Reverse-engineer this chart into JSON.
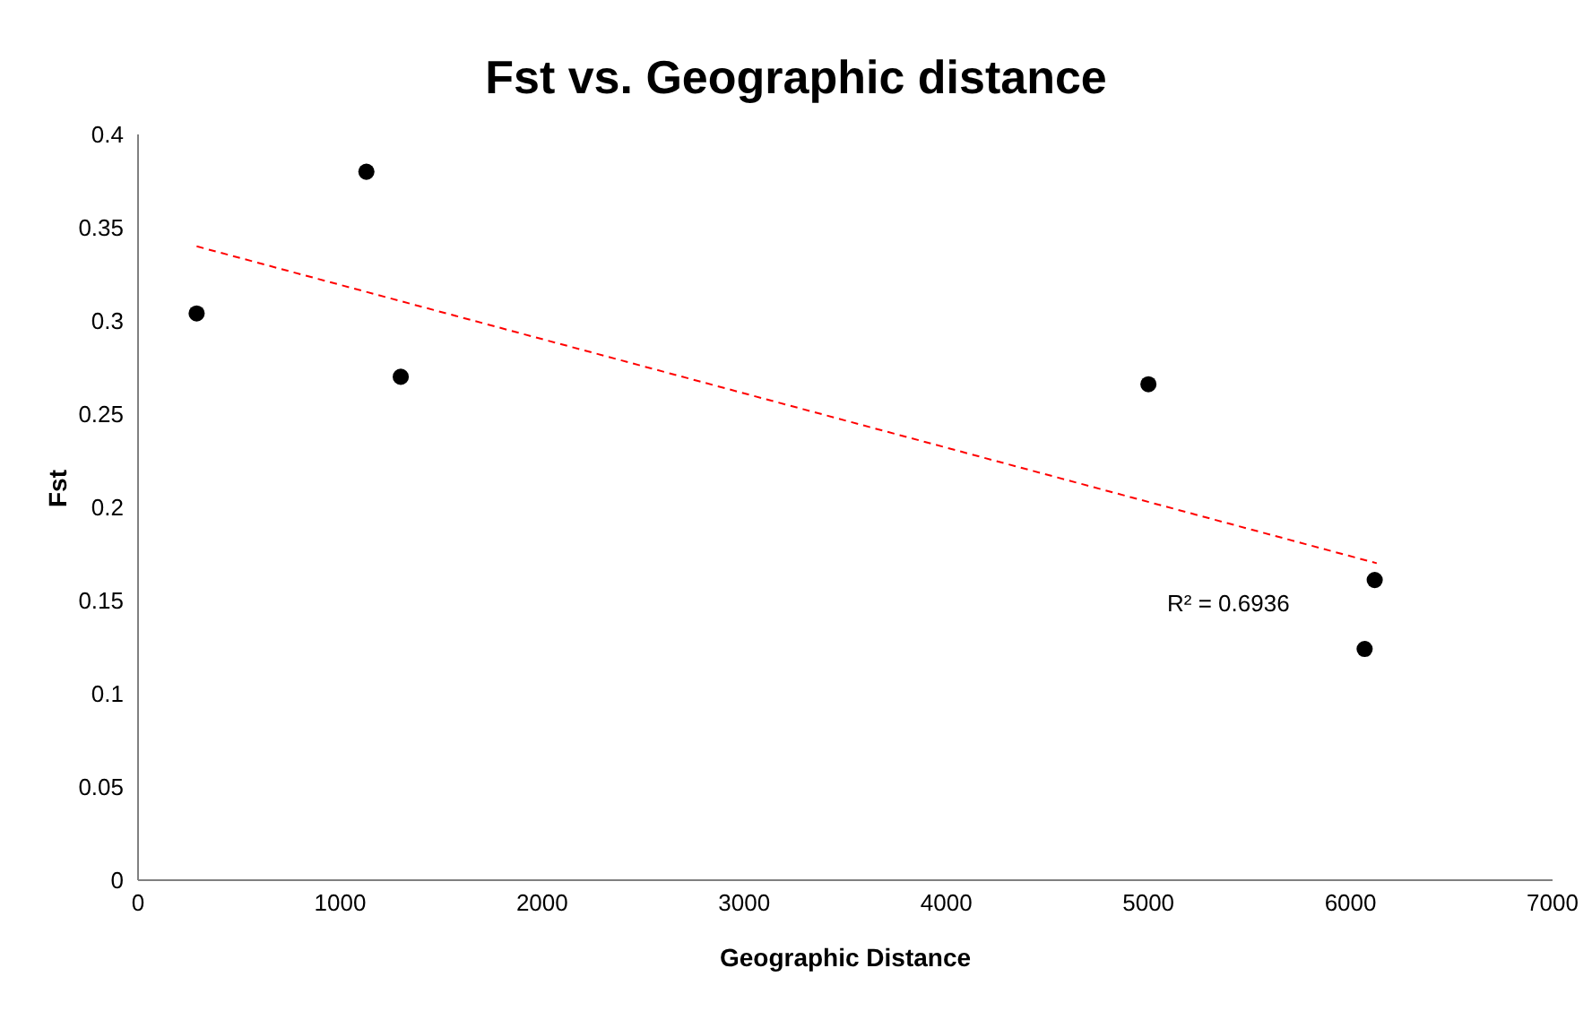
{
  "chart_data": {
    "type": "scatter",
    "title": "Fst vs. Geographic distance",
    "xlabel": "Geographic Distance",
    "ylabel": "Fst",
    "xlim": [
      0,
      7000
    ],
    "xticks": [
      0,
      1000,
      2000,
      3000,
      4000,
      5000,
      6000,
      7000
    ],
    "ylim": [
      0,
      0.4
    ],
    "yticks": [
      0,
      0.05,
      0.1,
      0.15,
      0.2,
      0.25,
      0.3,
      0.35,
      0.4
    ],
    "grid": false,
    "legend": false,
    "marker": "circle",
    "series": [
      {
        "color": "#000000",
        "x": [
          290,
          1130,
          1300,
          5000,
          6120,
          6070
        ],
        "values": [
          0.304,
          0.38,
          0.27,
          0.266,
          0.161,
          0.124
        ]
      },
      {
        "type": "line",
        "color": "#ff0000",
        "line_style": "dashed",
        "marker": "none",
        "x": [
          290,
          6130
        ],
        "values": [
          0.34,
          0.17
        ]
      }
    ],
    "annotations": [
      "R² = 0.6936"
    ]
  }
}
